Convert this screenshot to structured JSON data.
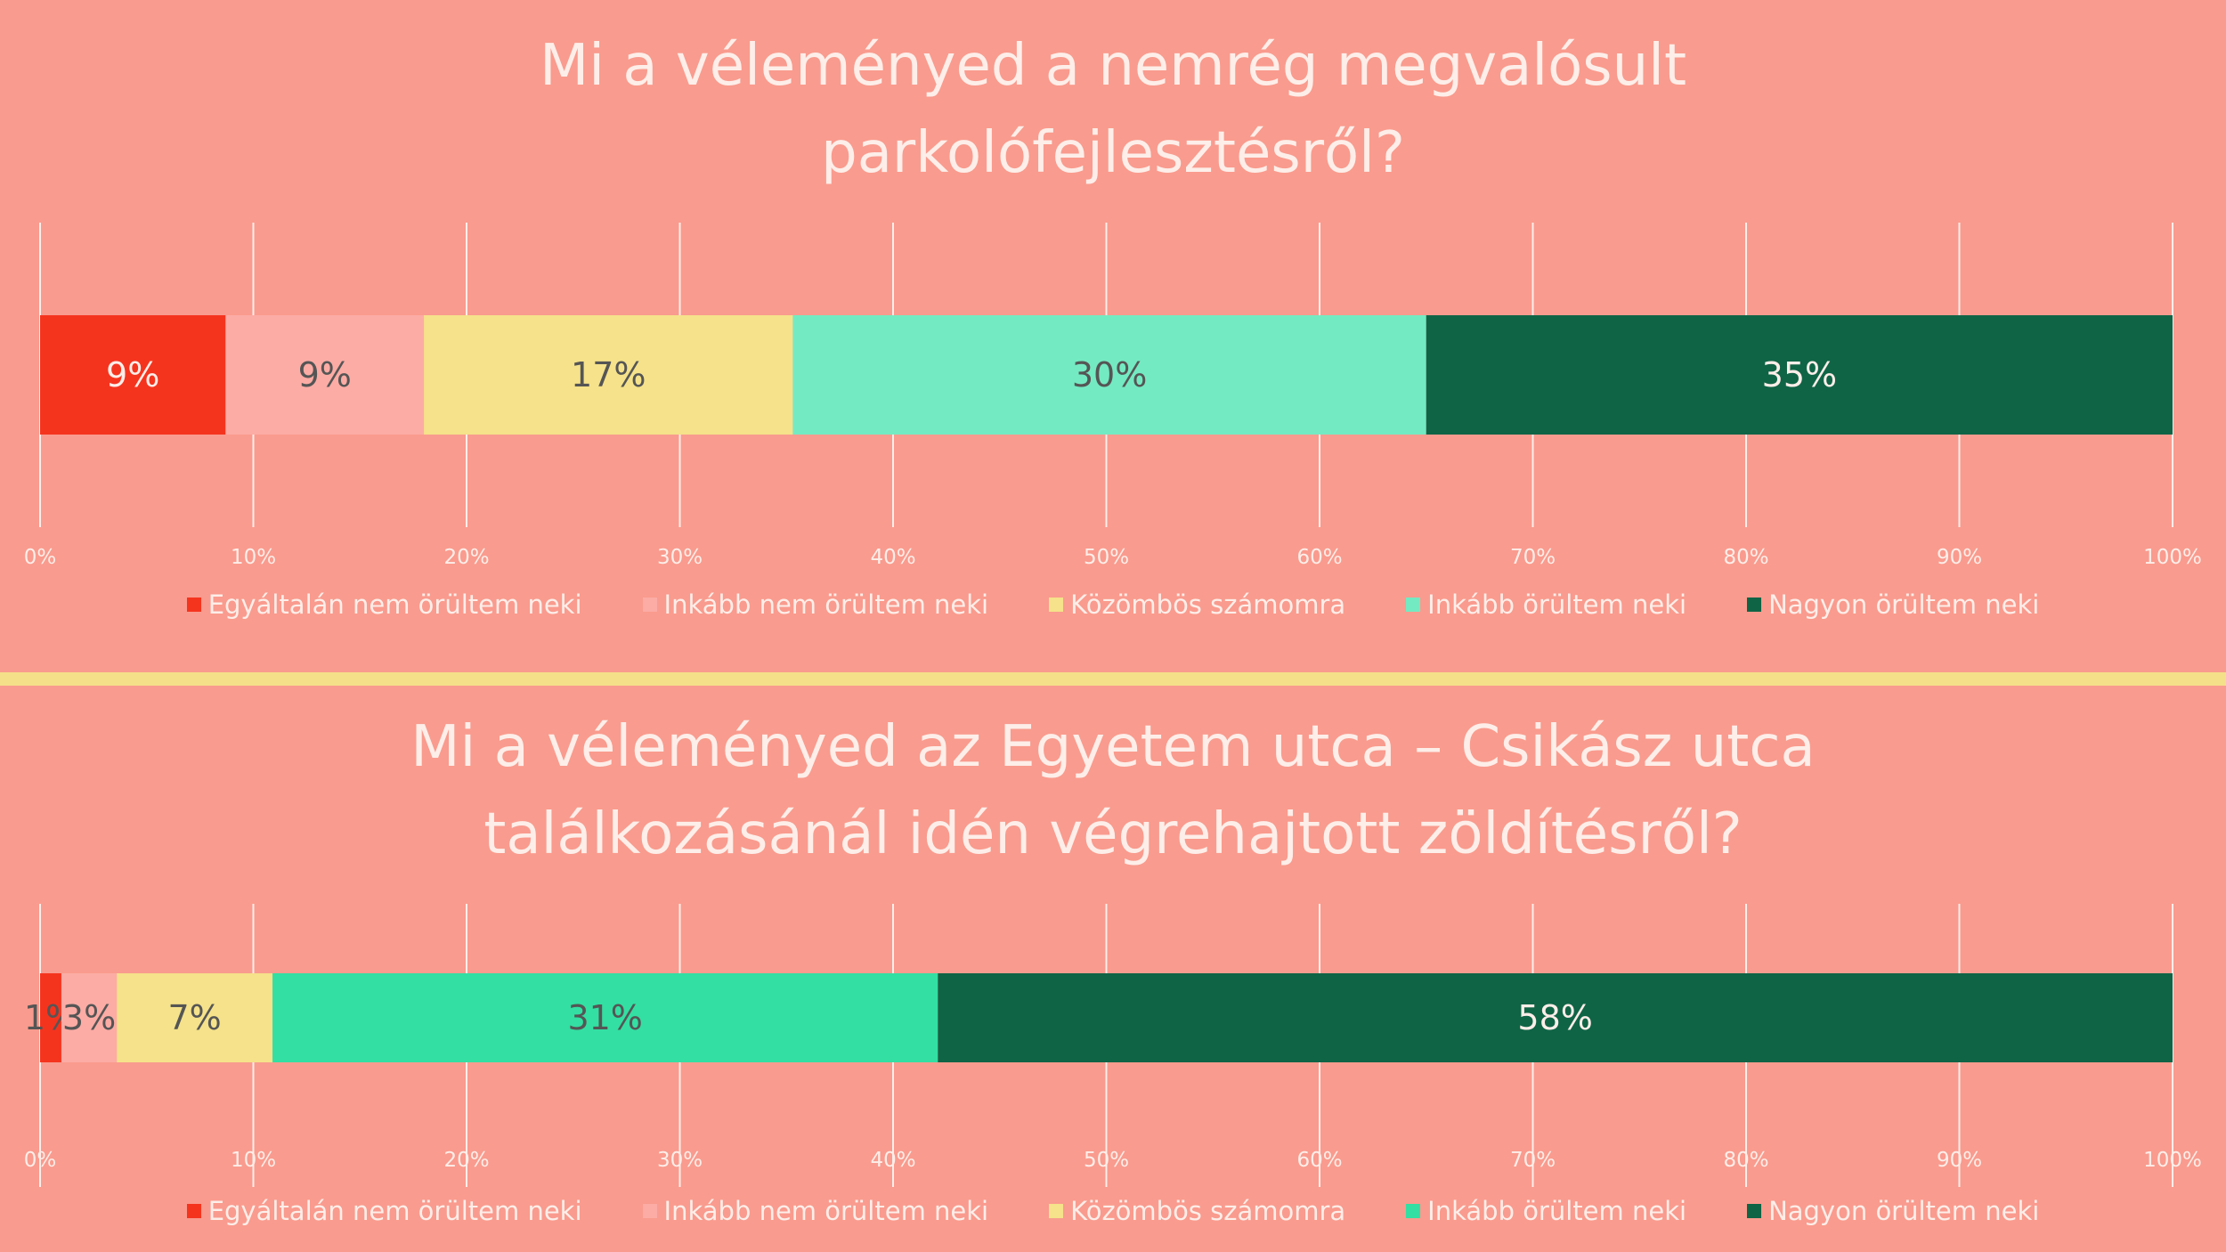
{
  "colors": {
    "background": "#f99b8e",
    "divider": "#f5e08a",
    "title_text": "#fdeee9",
    "gridline": "#fdeee9",
    "tick_text": "#fdeee9"
  },
  "legend_labels": [
    "Egyáltalán nem örültem neki",
    "Inkább nem örültem neki",
    "Közömbös számomra",
    "Inkább örültem neki",
    "Nagyon örültem neki"
  ],
  "chart_data": [
    {
      "type": "bar",
      "orientation": "horizontal",
      "stacked": true,
      "title_lines": [
        "Mi a véleményed a nemrég megvalósult",
        "parkolófejlesztésről?"
      ],
      "xlim": [
        0,
        100
      ],
      "x_ticks": [
        "0%",
        "10%",
        "20%",
        "30%",
        "40%",
        "50%",
        "60%",
        "70%",
        "80%",
        "90%",
        "100%"
      ],
      "grid": true,
      "legend_position": "bottom",
      "series": [
        {
          "name": "Egyáltalán nem örültem neki",
          "value": 8.7,
          "label": "9%",
          "color": "#f5341e",
          "label_color": "#fdeee9"
        },
        {
          "name": "Inkább nem örültem neki",
          "value": 9.3,
          "label": "9%",
          "color": "#fcaca5",
          "label_color": "#555555"
        },
        {
          "name": "Közömbös számomra",
          "value": 17.3,
          "label": "17%",
          "color": "#f5e28a",
          "label_color": "#555555"
        },
        {
          "name": "Inkább örültem neki",
          "value": 29.7,
          "label": "30%",
          "color": "#74eac2",
          "label_color": "#555555"
        },
        {
          "name": "Nagyon örültem neki",
          "value": 35.0,
          "label": "35%",
          "color": "#0f6446",
          "label_color": "#fdeee9"
        }
      ]
    },
    {
      "type": "bar",
      "orientation": "horizontal",
      "stacked": true,
      "title_lines": [
        "Mi a véleményed az Egyetem utca – Csikász utca",
        "találkozásánál idén végrehajtott zöldítésről?"
      ],
      "xlim": [
        0,
        100
      ],
      "x_ticks": [
        "0%",
        "10%",
        "20%",
        "30%",
        "40%",
        "50%",
        "60%",
        "70%",
        "80%",
        "90%",
        "100%"
      ],
      "grid": true,
      "legend_position": "bottom",
      "series": [
        {
          "name": "Egyáltalán nem örültem neki",
          "value": 1.0,
          "label": "1%",
          "color": "#f5341e",
          "label_color": "#555555"
        },
        {
          "name": "Inkább nem örültem neki",
          "value": 2.6,
          "label": "3%",
          "color": "#fcaca5",
          "label_color": "#555555"
        },
        {
          "name": "Közömbös számomra",
          "value": 7.3,
          "label": "7%",
          "color": "#f5e28a",
          "label_color": "#555555"
        },
        {
          "name": "Inkább örültem neki",
          "value": 31.2,
          "label": "31%",
          "color": "#33dfa3",
          "label_color": "#555555"
        },
        {
          "name": "Nagyon örültem neki",
          "value": 57.9,
          "label": "58%",
          "color": "#0f6446",
          "label_color": "#fdeee9"
        }
      ]
    }
  ]
}
